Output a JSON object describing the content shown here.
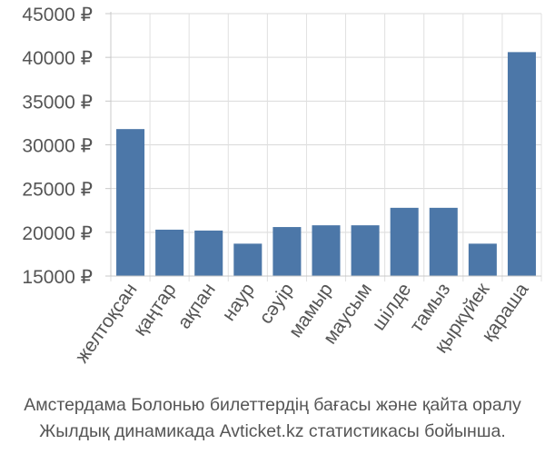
{
  "chart_data": {
    "type": "bar",
    "categories": [
      "желтоқсан",
      "қаңтар",
      "ақпан",
      "наур",
      "сәуір",
      "мамыр",
      "маусым",
      "шілде",
      "тамыз",
      "қыркүйек",
      "қараша"
    ],
    "values": [
      31800,
      20300,
      20200,
      18700,
      20600,
      20800,
      20800,
      22800,
      22800,
      18700,
      40600
    ],
    "ylim": [
      15000,
      45000
    ],
    "yticks": [
      15000,
      20000,
      25000,
      30000,
      35000,
      40000,
      45000
    ],
    "ytick_labels": [
      "15000 ₽",
      "20000 ₽",
      "25000 ₽",
      "30000 ₽",
      "35000 ₽",
      "40000 ₽",
      "45000 ₽"
    ],
    "grid": true,
    "bar_color": "#4c77a8"
  },
  "caption": {
    "line1": "Амстердама Болонью билеттердің бағасы және қайта оралу",
    "line2": "Жылдық динамикада Avticket.kz статистикасы бойынша."
  }
}
